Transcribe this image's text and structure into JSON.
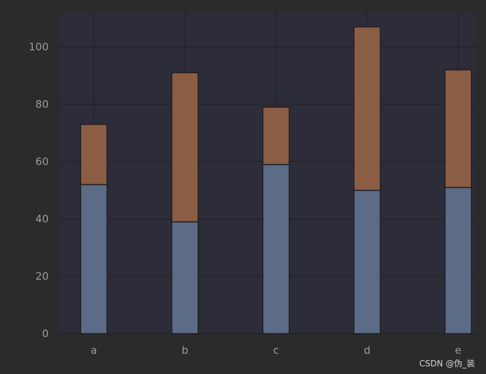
{
  "chart_data": {
    "type": "bar",
    "stacked": true,
    "categories": [
      "a",
      "b",
      "c",
      "d",
      "e"
    ],
    "series": [
      {
        "values": [
          52,
          39,
          59,
          50,
          51
        ],
        "color": "#5c6b86"
      },
      {
        "values": [
          21,
          52,
          20,
          57,
          41
        ],
        "color": "#8a5d44"
      }
    ],
    "title": "",
    "xlabel": "",
    "ylabel": "",
    "ylim": [
      0,
      112
    ],
    "yticks": [
      0,
      20,
      40,
      60,
      80,
      100
    ],
    "grid": true,
    "plot_background": "#2d2c39",
    "grid_color": "#232228"
  },
  "watermark": "CSDN @伪_装"
}
